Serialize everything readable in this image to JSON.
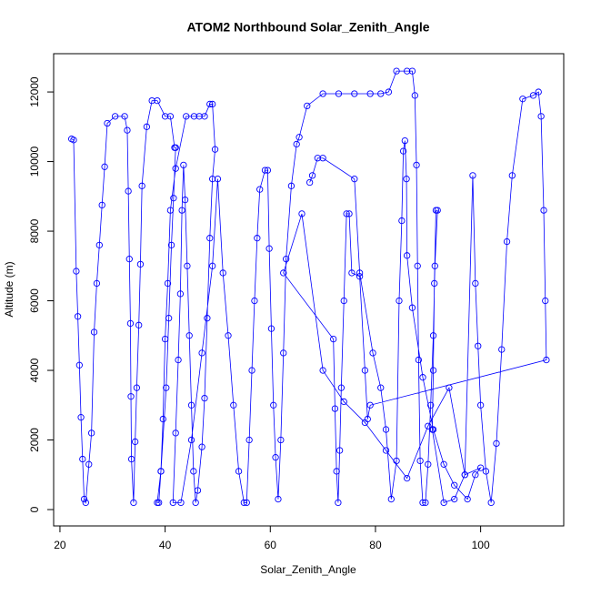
{
  "chart_data": {
    "type": "line",
    "title": "ATOM2 Northbound Solar_Zenith_Angle",
    "x_label": "Solar_Zenith_Angle",
    "y_label": "Altitude (m)",
    "markers": true,
    "x": [
      22.2,
      22.6,
      23.1,
      23.4,
      23.7,
      24.0,
      24.3,
      24.6,
      24.9,
      25.5,
      26.0,
      26.5,
      27.0,
      27.5,
      28.0,
      28.5,
      29.0,
      30.5,
      32.3,
      32.8,
      33.0,
      33.2,
      33.4,
      33.5,
      33.6,
      34.0,
      34.3,
      34.6,
      35.0,
      35.3,
      35.6,
      36.5,
      37.5,
      38.5,
      40.0,
      41.0,
      41.8,
      42.0,
      41.6,
      41.2,
      40.7,
      40.2,
      39.2,
      38.5,
      38.8,
      39.2,
      39.6,
      40.0,
      40.5,
      41.0,
      42.0,
      44.0,
      45.5,
      46.5,
      47.5,
      48.5,
      49.0,
      49.5,
      49.0,
      48.5,
      48.0,
      47.5,
      47.0,
      46.2,
      45.8,
      45.4,
      45.0,
      44.6,
      44.2,
      43.8,
      43.5,
      43.2,
      42.9,
      42.5,
      42.0,
      41.5,
      43.0,
      45.0,
      47.0,
      49.0,
      50.0,
      51.0,
      52.0,
      53.0,
      54.0,
      55.0,
      55.5,
      56.0,
      56.5,
      57.0,
      57.5,
      58.0,
      59.0,
      59.5,
      59.8,
      60.2,
      60.6,
      61.0,
      61.5,
      62.0,
      62.5,
      63.0,
      64.0,
      65.0,
      65.5,
      67.0,
      70.0,
      73.0,
      76.0,
      79.0,
      81.0,
      82.5,
      84.0,
      86.0,
      87.0,
      87.5,
      87.8,
      88.0,
      88.2,
      88.5,
      89.0,
      89.5,
      90.0,
      90.5,
      91.0,
      91.3,
      91.8,
      91.5,
      91.2,
      91.0,
      90.8,
      93.0,
      95.0,
      97.0,
      98.5,
      99.0,
      99.5,
      100.0,
      101.0,
      102.0,
      103.0,
      104.0,
      105.0,
      106.0,
      108.0,
      110.0,
      111.0,
      111.5,
      112.0,
      112.3,
      112.5,
      79.0,
      78.5,
      78.0,
      77.0,
      75.5,
      75.0,
      74.5,
      74.0,
      73.5,
      73.2,
      72.9,
      72.6,
      72.3,
      72.0,
      62.5,
      66.0,
      70.0,
      74.0,
      78.0,
      82.0,
      86.0,
      90.0,
      94.0,
      97.0,
      100.0,
      99.0,
      97.5,
      95.0,
      93.0,
      91.0,
      89.0,
      87.0,
      86.0,
      85.9,
      85.6,
      85.3,
      85.0,
      84.5,
      84.0,
      83.0,
      82.0,
      81.0,
      79.5,
      77.0,
      76.0,
      70.0,
      69.0,
      68.0,
      67.5
    ],
    "series": [
      {
        "name": "Altitude",
        "color": "#0000ff",
        "values": [
          10650,
          10620,
          6850,
          5550,
          4150,
          2650,
          1450,
          300,
          200,
          1300,
          2200,
          5100,
          6500,
          7600,
          8750,
          9850,
          11100,
          11300,
          11300,
          10900,
          9150,
          7200,
          5350,
          3250,
          1450,
          200,
          1950,
          3500,
          5300,
          7050,
          9300,
          11000,
          11750,
          11750,
          11300,
          11300,
          10400,
          10400,
          8950,
          7600,
          5500,
          3500,
          1100,
          200,
          200,
          1100,
          2600,
          4900,
          6500,
          8600,
          9800,
          11300,
          11300,
          11300,
          11300,
          11650,
          11650,
          10350,
          9500,
          7800,
          5500,
          3200,
          1800,
          550,
          200,
          1100,
          3000,
          5000,
          7000,
          8900,
          9900,
          8600,
          6200,
          4300,
          2200,
          200,
          200,
          2000,
          4500,
          7000,
          9500,
          6800,
          5000,
          3000,
          1100,
          200,
          200,
          2000,
          4000,
          6000,
          7800,
          9200,
          9750,
          9750,
          7500,
          5200,
          3000,
          1500,
          300,
          2000,
          4500,
          7200,
          9300,
          10500,
          10700,
          11600,
          11950,
          11950,
          11950,
          11950,
          11950,
          12000,
          12600,
          12600,
          12600,
          11900,
          9900,
          7000,
          4300,
          1400,
          200,
          200,
          1300,
          3000,
          5000,
          7000,
          8600,
          8600,
          6500,
          4000,
          2300,
          200,
          300,
          1000,
          9600,
          6500,
          4700,
          3000,
          1100,
          200,
          1900,
          4600,
          7700,
          9600,
          11800,
          11900,
          12000,
          11300,
          8600,
          6000,
          4300,
          3000,
          2600,
          4000,
          6700,
          6800,
          8500,
          8500,
          6000,
          3500,
          1700,
          200,
          1100,
          2900,
          4900,
          6800,
          8500,
          4000,
          3100,
          2500,
          1700,
          900,
          2400,
          3500,
          1000,
          1200,
          1000,
          300,
          700,
          1300,
          2300,
          3800,
          5800,
          7300,
          9500,
          10600,
          10300,
          8300,
          6000,
          1400,
          300,
          2300,
          3500,
          4500,
          6800,
          9500,
          10100,
          10100,
          9600,
          9400
        ]
      }
    ],
    "xlim": [
      18.8,
      115.8
    ],
    "xticks": [
      20,
      40,
      60,
      80,
      100
    ],
    "ylim": [
      -470,
      13100
    ],
    "yticks": [
      0,
      2000,
      4000,
      6000,
      8000,
      10000,
      12000
    ]
  }
}
